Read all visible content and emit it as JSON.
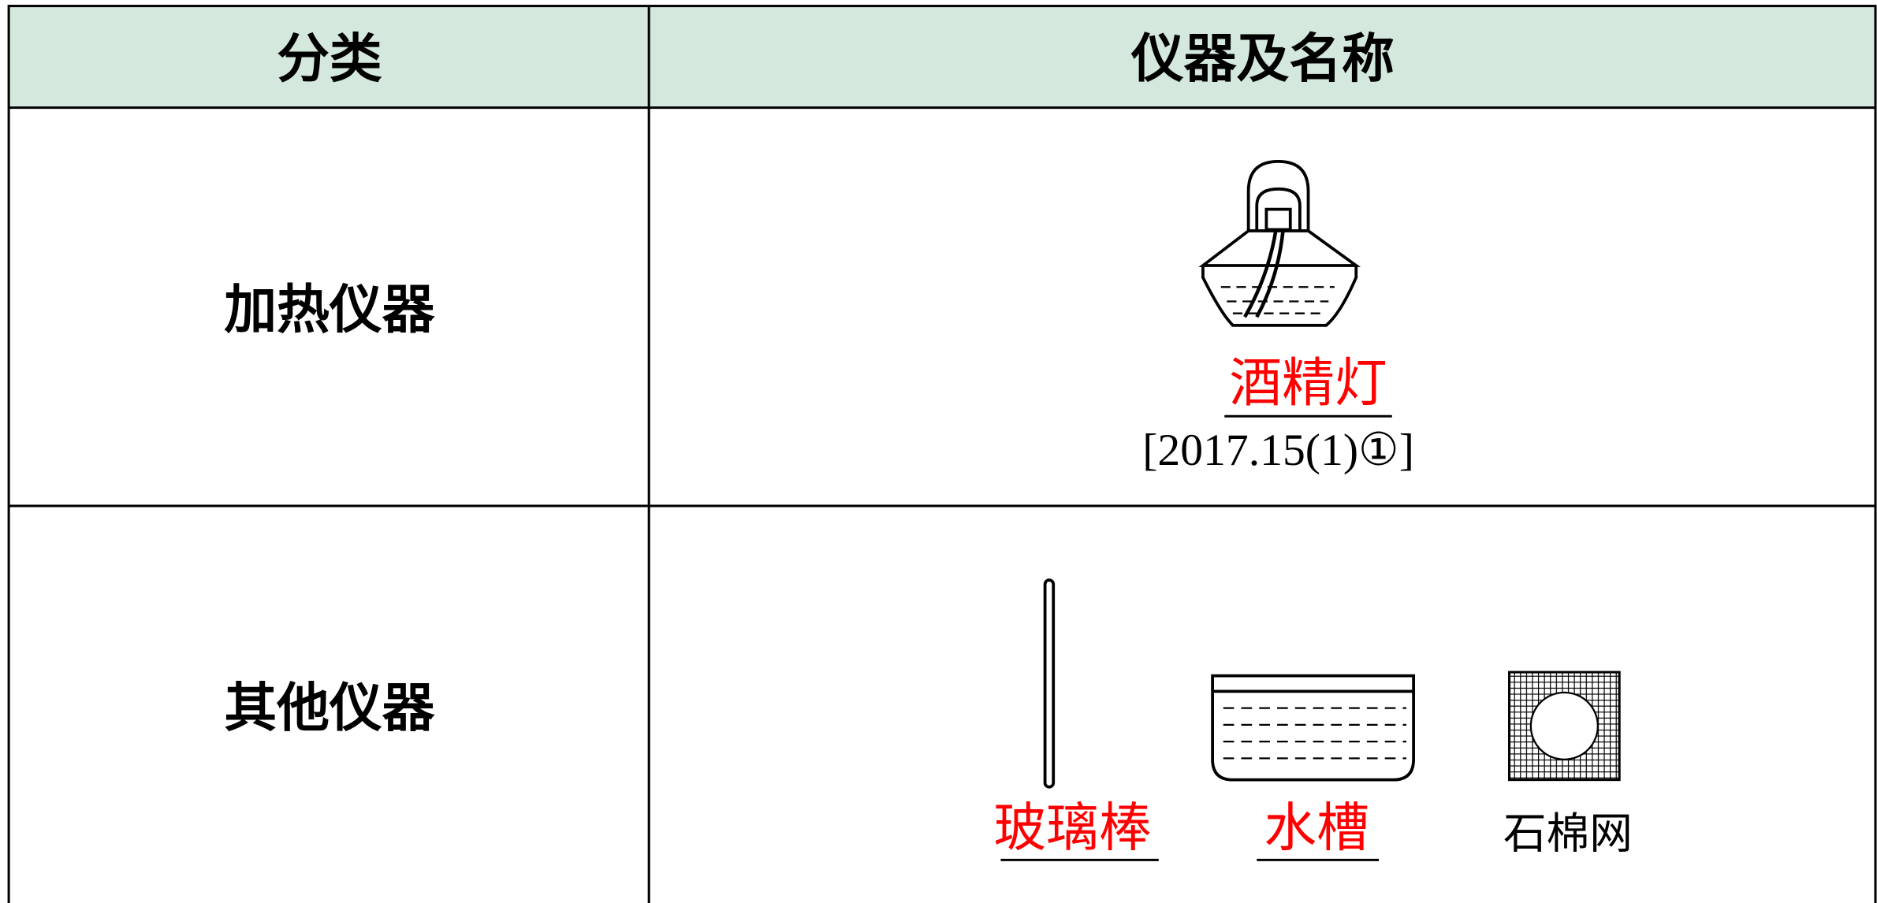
{
  "table": {
    "header": [
      "分类",
      "仪器及名称"
    ],
    "rows": [
      {
        "category": "加热仪器",
        "items": [
          {
            "name": "酒精灯",
            "note": "[2017.15(1)①]"
          }
        ]
      },
      {
        "category": "其他仪器",
        "items": [
          {
            "name": "玻璃棒"
          },
          {
            "name": "水槽"
          },
          {
            "name": "石棉网"
          }
        ]
      }
    ]
  }
}
